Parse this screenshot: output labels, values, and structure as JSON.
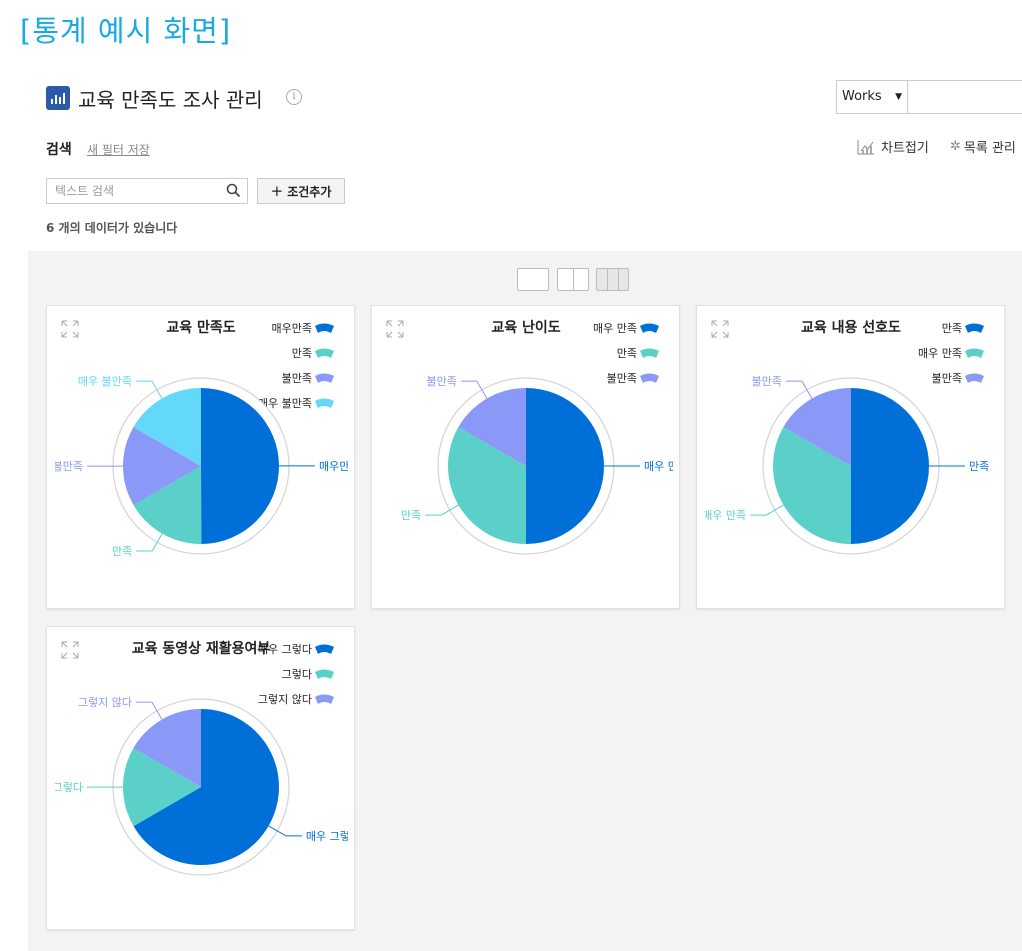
{
  "caption": "[통계 예시 화면]",
  "page_title": "교육 만족도 조사 관리",
  "works_select": {
    "value": "Works"
  },
  "search": {
    "label": "검색",
    "new_filter": "새 필터 저장",
    "placeholder": "텍스트 검색"
  },
  "toolbar": {
    "chart_fold": "차트접기",
    "list_manage": "목록 관리",
    "add_condition": "조건추가"
  },
  "data_count": "6 개의 데이터가 있습니다",
  "colors": {
    "accent": "#1aa9e0",
    "title_icon": "#2d5aa8"
  },
  "chart_data": [
    {
      "type": "pie",
      "title": "교육 만족도",
      "categories": [
        "매우만족",
        "만족",
        "불만족",
        "매우 불만족"
      ],
      "values": [
        50,
        16.7,
        16.7,
        16.7
      ],
      "colors": [
        "#0070d8",
        "#5bd0c8",
        "#8a98f7",
        "#63d8f8"
      ],
      "slice_labels": [
        "매우만족",
        "만족",
        "불만족",
        "매우 불만족"
      ],
      "legend": "top-right"
    },
    {
      "type": "pie",
      "title": "교육 난이도",
      "categories": [
        "매우 만족",
        "만족",
        "불만족"
      ],
      "values": [
        50,
        33.3,
        16.7
      ],
      "colors": [
        "#0070d8",
        "#5bd0c8",
        "#8a98f7"
      ],
      "slice_labels": [
        "매우 만족",
        "만족",
        "불만족"
      ],
      "legend": "top-right"
    },
    {
      "type": "pie",
      "title": "교육 내용 선호도",
      "categories": [
        "만족",
        "매우 만족",
        "불만족"
      ],
      "values": [
        50,
        33.3,
        16.7
      ],
      "colors": [
        "#0070d8",
        "#5bd0c8",
        "#8a98f7"
      ],
      "slice_labels": [
        "만족",
        "매우 만족",
        "불만족"
      ],
      "legend": "top-right"
    },
    {
      "type": "pie",
      "title": "교육 동영상 재활용여부",
      "categories": [
        "매우 그렇다",
        "그렇다",
        "그렇지 않다"
      ],
      "values": [
        66.7,
        16.7,
        16.7
      ],
      "colors": [
        "#0070d8",
        "#5bd0c8",
        "#8a98f7"
      ],
      "slice_labels": [
        "매우 그렇다",
        "그렇다",
        "그렇지 않다"
      ],
      "legend": "top-right"
    }
  ]
}
